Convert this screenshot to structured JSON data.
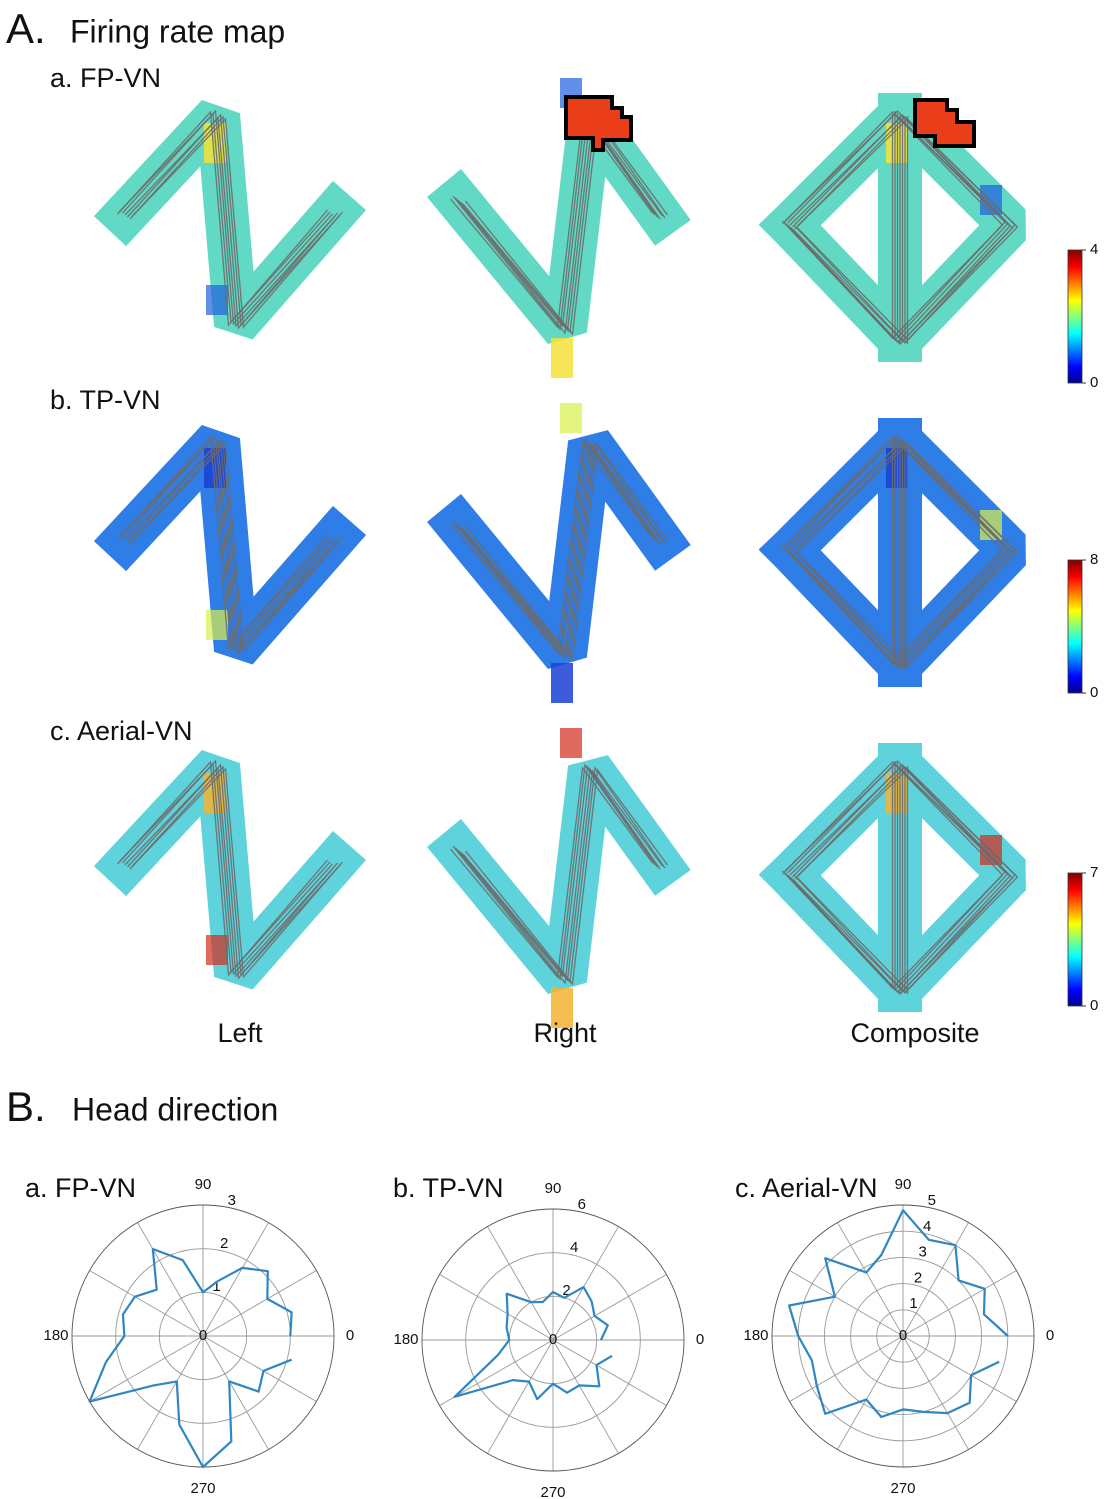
{
  "firing_rate_map": {
    "label": "A.",
    "title": "Firing rate map",
    "rows": [
      {
        "label": "a. FP-VN",
        "colorbar": {
          "clim": [
            0,
            4
          ],
          "ticks": [
            0,
            4
          ]
        }
      },
      {
        "label": "b. TP-VN",
        "colorbar": {
          "clim": [
            0,
            8
          ],
          "ticks": [
            0,
            8
          ]
        }
      },
      {
        "label": "c. Aerial-VN",
        "colorbar": {
          "clim": [
            0,
            7
          ],
          "ticks": [
            0,
            7
          ]
        }
      }
    ],
    "columns": [
      "Left",
      "Right",
      "Composite"
    ]
  },
  "head_direction": {
    "label": "B.",
    "title": "Head direction"
  },
  "chart_data": [
    {
      "type": "polar",
      "title": "a. FP-VN",
      "color": "#2f86c3",
      "theta": [
        0,
        15,
        30,
        45,
        60,
        75,
        90,
        105,
        120,
        135,
        150,
        165,
        180,
        195,
        210,
        225,
        240,
        255,
        270,
        285,
        300,
        315,
        330,
        345
      ],
      "values": [
        2.0,
        2.1,
        1.7,
        2.1,
        1.8,
        1.3,
        1.0,
        1.8,
        2.3,
        1.5,
        1.8,
        1.9,
        1.8,
        2.3,
        3.0,
        1.6,
        1.2,
        2.1,
        3.0,
        2.5,
        1.2,
        1.8,
        1.6,
        2.1
      ],
      "rlim": [
        0,
        3
      ],
      "rticks": [
        0,
        1,
        2,
        3
      ],
      "thetaticks": [
        0,
        90,
        180,
        270
      ]
    },
    {
      "type": "polar",
      "title": "b. TP-VN",
      "color": "#2f86c3",
      "theta": [
        0,
        15,
        30,
        45,
        60,
        75,
        90,
        105,
        120,
        135,
        150,
        165,
        180,
        195,
        210,
        225,
        240,
        255,
        270,
        285,
        300,
        315,
        330,
        345
      ],
      "values": [
        2.2,
        2.6,
        2.2,
        2.5,
        2.8,
        2.0,
        2.2,
        1.8,
        2.0,
        3.0,
        2.4,
        2.2,
        2.0,
        2.6,
        5.2,
        2.6,
        2.2,
        2.8,
        2.0,
        2.5,
        2.4,
        3.0,
        2.3,
        2.8
      ],
      "rlim": [
        0,
        6
      ],
      "rticks": [
        0,
        2,
        4,
        6
      ],
      "thetaticks": [
        0,
        90,
        180,
        270
      ]
    },
    {
      "type": "polar",
      "title": "c. Aerial-VN",
      "color": "#2f86c3",
      "theta": [
        0,
        15,
        30,
        45,
        60,
        75,
        90,
        105,
        120,
        135,
        150,
        165,
        180,
        195,
        210,
        225,
        240,
        255,
        270,
        285,
        300,
        315,
        330,
        345
      ],
      "values": [
        4.0,
        3.2,
        3.6,
        3.0,
        4.0,
        3.8,
        4.8,
        3.2,
        2.8,
        4.2,
        3.0,
        4.5,
        4.0,
        3.6,
        3.8,
        4.2,
        2.8,
        3.2,
        2.8,
        3.0,
        3.4,
        3.6,
        3.0,
        3.8
      ],
      "rlim": [
        0,
        5
      ],
      "rticks": [
        0,
        1,
        2,
        3,
        4,
        5
      ],
      "thetaticks": [
        0,
        90,
        180,
        270
      ]
    }
  ]
}
